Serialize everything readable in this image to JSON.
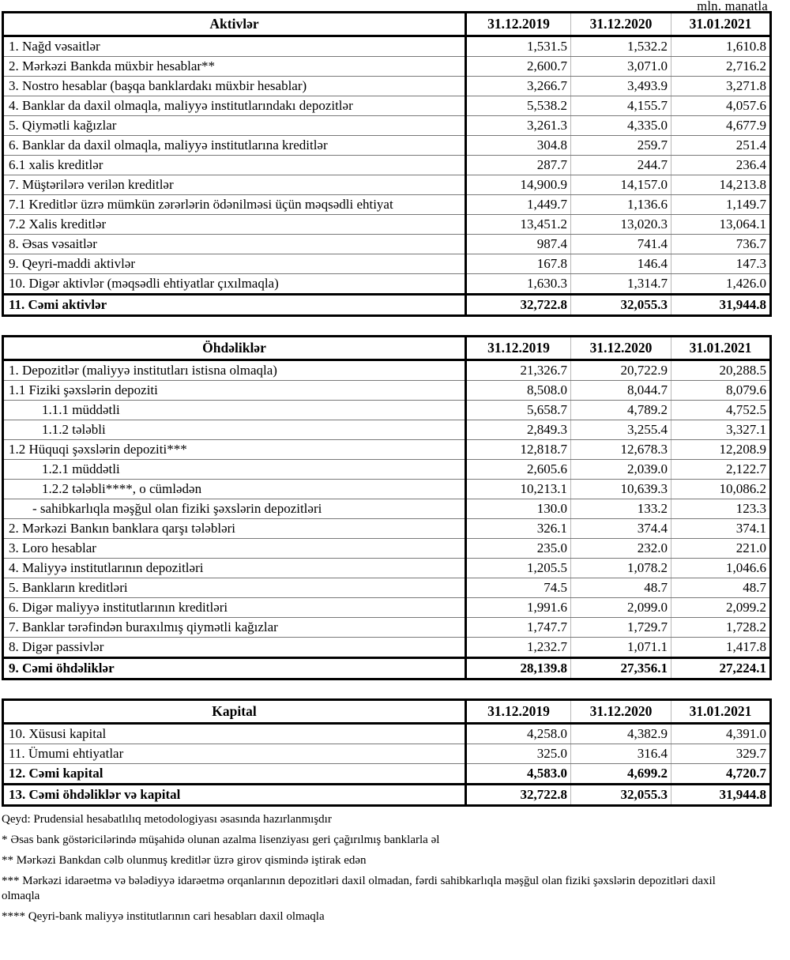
{
  "unit_label": "mln. manatla",
  "columns": [
    "31.12.2019",
    "31.12.2020",
    "31.01.2021"
  ],
  "tables": [
    {
      "header": "Aktivlər",
      "rows": [
        {
          "label": "1. Nağd vəsaitlər",
          "values": [
            "1,531.5",
            "1,532.2",
            "1,610.8"
          ]
        },
        {
          "label": "2. Mərkəzi Bankda müxbir hesablar**",
          "values": [
            "2,600.7",
            "3,071.0",
            "2,716.2"
          ]
        },
        {
          "label": "3. Nostro hesablar (başqa banklardakı müxbir hesablar)",
          "values": [
            "3,266.7",
            "3,493.9",
            "3,271.8"
          ]
        },
        {
          "label": "4. Banklar da daxil olmaqla, maliyyə institutlarındakı depozitlər",
          "values": [
            "5,538.2",
            "4,155.7",
            "4,057.6"
          ]
        },
        {
          "label": "5. Qiymətli kağızlar",
          "values": [
            "3,261.3",
            "4,335.0",
            "4,677.9"
          ]
        },
        {
          "label": "6. Banklar da daxil olmaqla, maliyyə institutlarına kreditlər",
          "values": [
            "304.8",
            "259.7",
            "251.4"
          ]
        },
        {
          "label": "6.1 xalis kreditlər",
          "values": [
            "287.7",
            "244.7",
            "236.4"
          ]
        },
        {
          "label": "7. Müştərilərə verilən kreditlər",
          "values": [
            "14,900.9",
            "14,157.0",
            "14,213.8"
          ]
        },
        {
          "label": "7.1 Kreditlər üzrə mümkün zərərlərin ödənilməsi üçün məqsədli ehtiyat",
          "values": [
            "1,449.7",
            "1,136.6",
            "1,149.7"
          ],
          "two_line": true
        },
        {
          "label": "7.2 Xalis kreditlər",
          "values": [
            "13,451.2",
            "13,020.3",
            "13,064.1"
          ]
        },
        {
          "label": "8. Əsas vəsaitlər",
          "values": [
            "987.4",
            "741.4",
            "736.7"
          ]
        },
        {
          "label": "9. Qeyri-maddi aktivlər",
          "values": [
            "167.8",
            "146.4",
            "147.3"
          ]
        },
        {
          "label": "10. Digər aktivlər (məqsədli ehtiyatlar çıxılmaqla)",
          "values": [
            "1,630.3",
            "1,314.7",
            "1,426.0"
          ]
        },
        {
          "label": "11. Cəmi aktivlər",
          "values": [
            "32,722.8",
            "32,055.3",
            "31,944.8"
          ],
          "bold": true,
          "thick_top": true
        }
      ]
    },
    {
      "header": "Öhdəliklər",
      "rows": [
        {
          "label": "1. Depozitlər (maliyyə institutları istisna olmaqla)",
          "values": [
            "21,326.7",
            "20,722.9",
            "20,288.5"
          ]
        },
        {
          "label": "1.1 Fiziki şəxslərin depoziti",
          "values": [
            "8,508.0",
            "8,044.7",
            "8,079.6"
          ]
        },
        {
          "label": "1.1.1 müddətli",
          "values": [
            "5,658.7",
            "4,789.2",
            "4,752.5"
          ],
          "indent": 1
        },
        {
          "label": "1.1.2 tələbli",
          "values": [
            "2,849.3",
            "3,255.4",
            "3,327.1"
          ],
          "indent": 1
        },
        {
          "label": "1.2 Hüquqi şəxslərin depoziti***",
          "values": [
            "12,818.7",
            "12,678.3",
            "12,208.9"
          ]
        },
        {
          "label": "1.2.1 müddətli",
          "values": [
            "2,605.6",
            "2,039.0",
            "2,122.7"
          ],
          "indent": 1
        },
        {
          "label": "1.2.2 tələbli****, o cümlədən",
          "values": [
            "10,213.1",
            "10,639.3",
            "10,086.2"
          ],
          "indent": 1
        },
        {
          "label": "- sahibkarlıqla məşğul olan fiziki şəxslərin depozitləri",
          "values": [
            "130.0",
            "133.2",
            "123.3"
          ],
          "indent": 2
        },
        {
          "label": "2. Mərkəzi Bankın banklara qarşı tələbləri",
          "values": [
            "326.1",
            "374.4",
            "374.1"
          ]
        },
        {
          "label": "3. Loro hesablar",
          "values": [
            "235.0",
            "232.0",
            "221.0"
          ]
        },
        {
          "label": "4. Maliyyə institutlarının depozitləri",
          "values": [
            "1,205.5",
            "1,078.2",
            "1,046.6"
          ]
        },
        {
          "label": "5. Bankların kreditləri",
          "values": [
            "74.5",
            "48.7",
            "48.7"
          ]
        },
        {
          "label": "6. Digər maliyyə institutlarının kreditləri",
          "values": [
            "1,991.6",
            "2,099.0",
            "2,099.2"
          ]
        },
        {
          "label": "7. Banklar tərəfindən buraxılmış qiymətli kağızlar",
          "values": [
            "1,747.7",
            "1,729.7",
            "1,728.2"
          ]
        },
        {
          "label": "8. Digər passivlər",
          "values": [
            "1,232.7",
            "1,071.1",
            "1,417.8"
          ]
        },
        {
          "label": "9. Cəmi öhdəliklər",
          "values": [
            "28,139.8",
            "27,356.1",
            "27,224.1"
          ],
          "bold": true,
          "thick_top": true
        }
      ]
    },
    {
      "header": "Kapital",
      "rows": [
        {
          "label": "10. Xüsusi kapital",
          "values": [
            "4,258.0",
            "4,382.9",
            "4,391.0"
          ]
        },
        {
          "label": "11. Ümumi ehtiyatlar",
          "values": [
            "325.0",
            "316.4",
            "329.7"
          ]
        },
        {
          "label": "12. Cəmi kapital",
          "values": [
            "4,583.0",
            "4,699.2",
            "4,720.7"
          ],
          "bold": true
        },
        {
          "label": "13. Cəmi öhdəliklər və kapital",
          "values": [
            "32,722.8",
            "32,055.3",
            "31,944.8"
          ],
          "bold": true,
          "thick_top": true
        }
      ]
    }
  ],
  "footnotes": [
    "Qeyd: Prudensial hesabatlılıq metodologiyası əsasında hazırlanmışdır",
    "* Əsas bank göstəricilərində müşahidə olunan azalma lisenziyası geri çağırılmış banklarla əl",
    "** Mərkəzi Bankdan cəlb olunmuş kreditlər üzrə girov qismində iştirak edən",
    "*** Mərkəzi idarəetmə və bələdiyyə idarəetmə orqanlarının depozitləri daxil olmadan, fərdi sahibkarlıqla məşğul olan fiziki şəxslərin depozitləri daxil olmaqla",
    "**** Qeyri-bank maliyyə institutlarının cari hesabları daxil olmaqla"
  ]
}
